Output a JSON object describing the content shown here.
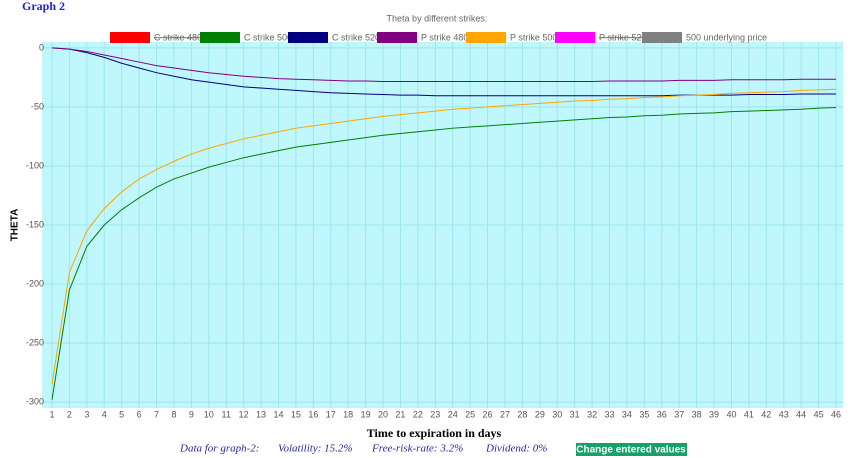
{
  "header": {
    "title": "Graph 2"
  },
  "chart_data": {
    "type": "line",
    "title": "Theta by different strikes:",
    "ylabel": "THETA",
    "xlabel": "Time to expiration in days",
    "x": [
      1,
      2,
      3,
      4,
      5,
      6,
      7,
      8,
      9,
      10,
      11,
      12,
      13,
      14,
      15,
      16,
      17,
      18,
      19,
      20,
      21,
      22,
      23,
      24,
      25,
      26,
      27,
      28,
      29,
      30,
      31,
      32,
      33,
      34,
      35,
      36,
      37,
      38,
      39,
      40,
      41,
      42,
      43,
      44,
      45,
      46
    ],
    "xlim": [
      1,
      46
    ],
    "ylim": [
      -305,
      5
    ],
    "yticks": [
      0,
      -50,
      -100,
      -150,
      -200,
      -250,
      -300
    ],
    "grid": true,
    "series": [
      {
        "name": "C strike 480",
        "color": "#ff0000",
        "hidden": true
      },
      {
        "name": "C strike 500",
        "color": "#008000",
        "values": [
          -298,
          -205,
          -168,
          -150,
          -137,
          -127,
          -118,
          -111,
          -106,
          -101,
          -97,
          -93,
          -90,
          -87,
          -84,
          -82,
          -80,
          -78,
          -76,
          -74,
          -72.5,
          -71,
          -69.5,
          -68,
          -67,
          -66,
          -65,
          -64,
          -63,
          -62,
          -61,
          -60,
          -59,
          -58.5,
          -57.5,
          -57,
          -56,
          -55.5,
          -55,
          -54,
          -53.5,
          -53,
          -52.5,
          -52,
          -51,
          -50.5
        ]
      },
      {
        "name": "C strike 520",
        "color": "#000080",
        "values": [
          0,
          -1,
          -4,
          -8,
          -13,
          -17,
          -21,
          -24,
          -27,
          -29,
          -31,
          -33,
          -34,
          -35,
          -36,
          -37,
          -38,
          -38.5,
          -39,
          -39.5,
          -40,
          -40,
          -40.5,
          -40.5,
          -40.5,
          -40.5,
          -40.5,
          -40.5,
          -40.5,
          -40.5,
          -40.5,
          -40.5,
          -40.5,
          -40.5,
          -40.5,
          -40.5,
          -40,
          -40,
          -40,
          -40,
          -39.5,
          -39.5,
          -39.5,
          -39,
          -39,
          -39
        ]
      },
      {
        "name": "P strike 480",
        "color": "#800080",
        "values": [
          0,
          -1,
          -3,
          -6,
          -9,
          -12,
          -15,
          -17,
          -19,
          -21,
          -22.5,
          -24,
          -25,
          -26,
          -26.5,
          -27,
          -27.5,
          -28,
          -28,
          -28.5,
          -28.5,
          -28.5,
          -28.5,
          -28.5,
          -28.5,
          -28.5,
          -28.5,
          -28.5,
          -28.5,
          -28.5,
          -28.5,
          -28.5,
          -28,
          -28,
          -28,
          -28,
          -27.5,
          -27.5,
          -27.5,
          -27,
          -27,
          -27,
          -27,
          -26.5,
          -26.5,
          -26.5
        ]
      },
      {
        "name": "P strike 500",
        "color": "#ffa500",
        "values": [
          -285,
          -190,
          -155,
          -136,
          -122,
          -111,
          -103,
          -96,
          -90,
          -85,
          -81,
          -77,
          -74,
          -71,
          -68,
          -66,
          -64,
          -62,
          -60,
          -58,
          -56.5,
          -55,
          -53.5,
          -52,
          -51,
          -50,
          -49,
          -48,
          -47,
          -46,
          -45,
          -44.5,
          -43.5,
          -43,
          -42,
          -41.5,
          -40.5,
          -40,
          -39.5,
          -38.5,
          -38,
          -37.5,
          -37,
          -36,
          -35.5,
          -35
        ]
      },
      {
        "name": "P strike 520",
        "color": "#ff00ff",
        "hidden": true
      },
      {
        "name": "500 underlying price",
        "color": "#808080"
      }
    ]
  },
  "footer": {
    "label": "Data for graph-2:",
    "items": [
      "Volatility: 15.2%",
      "Free-risk-rate: 3.2%",
      "Dividend: 0%"
    ],
    "button": "Change entered values"
  }
}
